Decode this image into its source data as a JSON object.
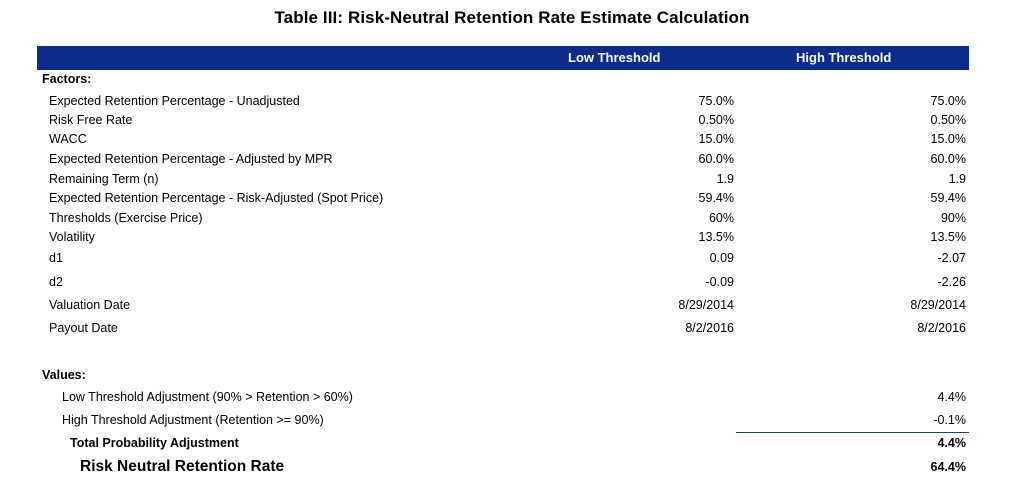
{
  "title": "Table III: Risk-Neutral Retention Rate Estimate Calculation",
  "columns": {
    "low": "Low Threshold",
    "high": "High Threshold"
  },
  "factors": {
    "heading": "Factors:",
    "rows": [
      {
        "label": "Expected Retention Percentage - Unadjusted",
        "low": "75.0%",
        "high": "75.0%"
      },
      {
        "label": "Risk Free Rate",
        "low": "0.50%",
        "high": "0.50%"
      },
      {
        "label": "WACC",
        "low": "15.0%",
        "high": "15.0%"
      },
      {
        "label": "Expected Retention Percentage - Adjusted by MPR",
        "low": "60.0%",
        "high": "60.0%"
      },
      {
        "label": "Remaining Term (n)",
        "low": "1.9",
        "high": "1.9"
      },
      {
        "label": "Expected Retention Percentage - Risk-Adjusted (Spot Price)",
        "low": "59.4%",
        "high": "59.4%"
      },
      {
        "label": "Thresholds (Exercise Price)",
        "low": "60%",
        "high": "90%"
      },
      {
        "label": "Volatility",
        "low": "13.5%",
        "high": "13.5%"
      },
      {
        "label": "d1",
        "low": "0.09",
        "high": "-2.07"
      },
      {
        "label": "d2",
        "low": "-0.09",
        "high": "-2.26"
      },
      {
        "label": "Valuation Date",
        "low": "8/29/2014",
        "high": "8/29/2014"
      },
      {
        "label": "Payout Date",
        "low": "8/2/2016",
        "high": "8/2/2016"
      }
    ]
  },
  "values": {
    "heading": "Values:",
    "rows": [
      {
        "label": "Low Threshold Adjustment (90% > Retention > 60%)",
        "value": "4.4%"
      },
      {
        "label": "High Threshold Adjustment (Retention >= 90%)",
        "value": "-0.1%"
      }
    ],
    "total": {
      "label": "Total Probability Adjustment",
      "value": "4.4%"
    },
    "final": {
      "label": "Risk Neutral Retention Rate",
      "value": "64.4%"
    }
  }
}
